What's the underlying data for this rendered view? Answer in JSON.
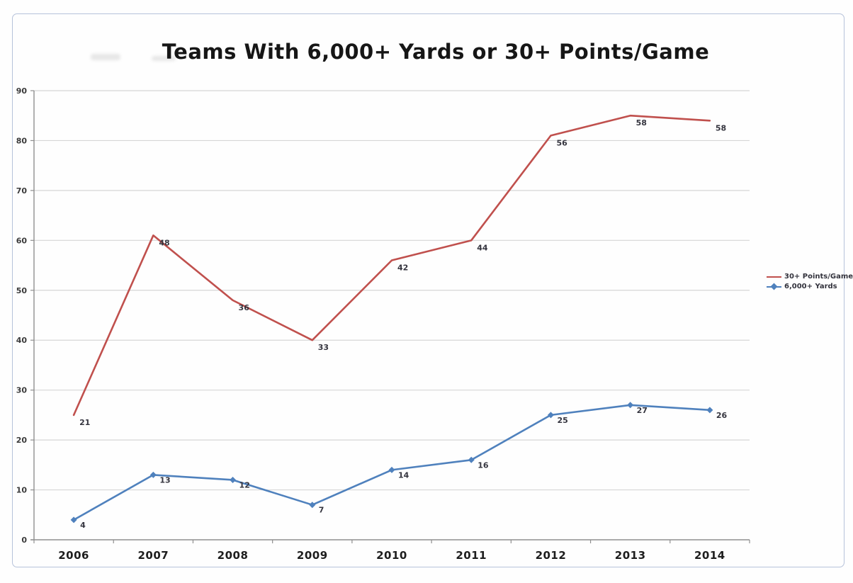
{
  "page": {
    "background": "#fefefe",
    "frame_color": "#b6c2da"
  },
  "chart_data": {
    "type": "line",
    "title": "Teams With 6,000+ Yards or 30+ Points/Game",
    "categories": [
      "2006",
      "2007",
      "2008",
      "2009",
      "2010",
      "2011",
      "2012",
      "2013",
      "2014"
    ],
    "ylim": [
      0,
      90
    ],
    "yticks": [
      0,
      10,
      20,
      30,
      40,
      50,
      60,
      70,
      80,
      90
    ],
    "grid": "horizontal",
    "legend_position": "right",
    "axis_color": "#8f8f8f",
    "gridline_color": "#d6d6d6",
    "data_label_color": "#35353f",
    "series": [
      {
        "name": "30+ Points/Game",
        "color": "#c0504d",
        "marker": "none",
        "values": [
          21,
          48,
          36,
          33,
          42,
          44,
          56,
          58,
          58
        ],
        "plotted_values": [
          25,
          61,
          48,
          40,
          56,
          60,
          81,
          85,
          84
        ],
        "note": "labels show series values; line is drawn at stacked position (value plus 6,000+ Yards value)"
      },
      {
        "name": "6,000+ Yards",
        "color": "#4f81bd",
        "marker": "diamond",
        "values": [
          4,
          13,
          12,
          7,
          14,
          16,
          25,
          27,
          26
        ],
        "plotted_values": [
          4,
          13,
          12,
          7,
          14,
          16,
          25,
          27,
          26
        ]
      }
    ]
  }
}
